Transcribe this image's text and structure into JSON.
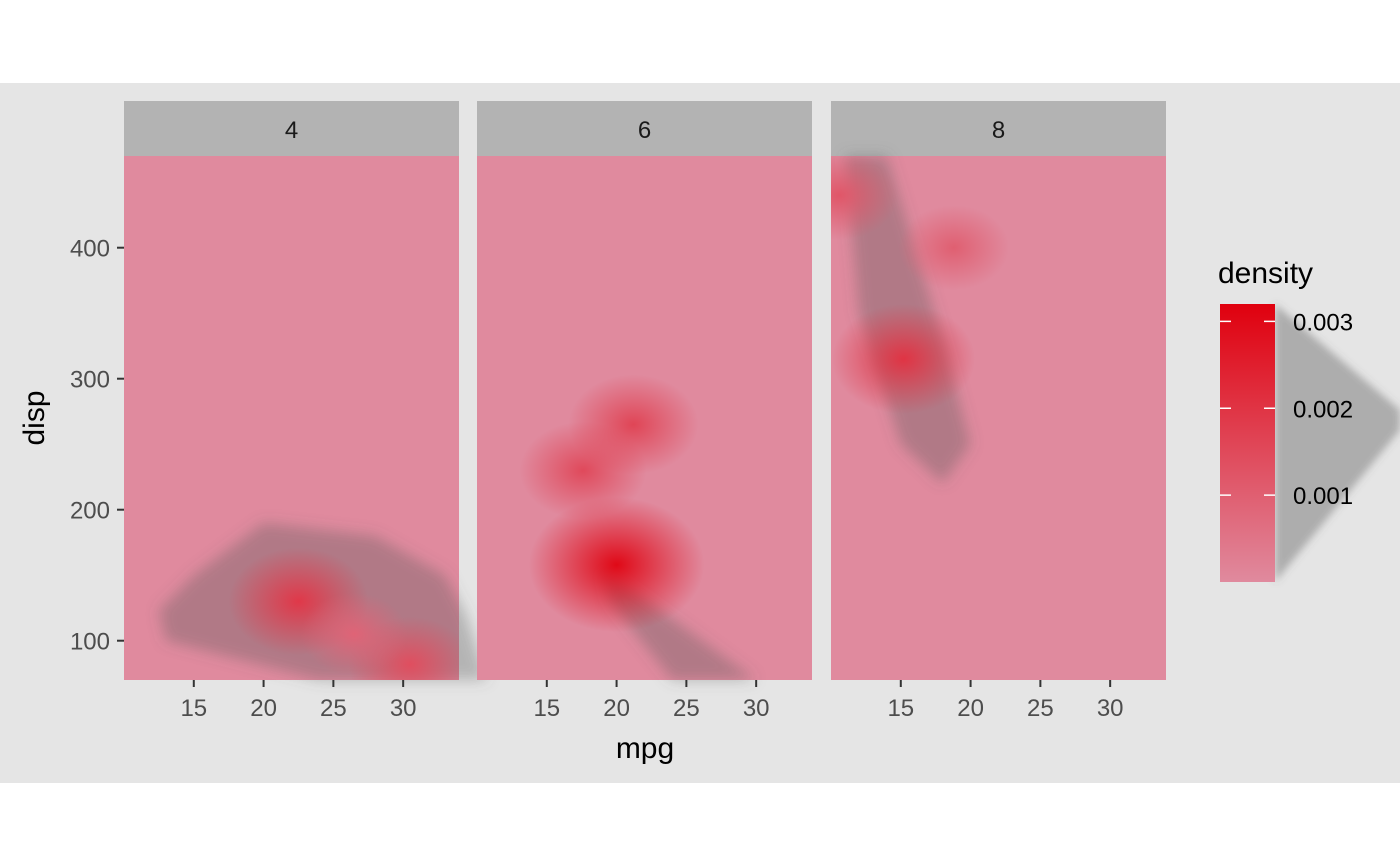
{
  "chart_data": {
    "type": "heatmap",
    "xlabel": "mpg",
    "ylabel": "disp",
    "facet_variable_values": [
      "4",
      "6",
      "8"
    ],
    "xlim": [
      10,
      34
    ],
    "ylim": [
      70,
      470
    ],
    "x_ticks": [
      15,
      20,
      25,
      30
    ],
    "y_ticks": [
      100,
      200,
      300,
      400
    ],
    "legend": {
      "title": "density",
      "position": "right",
      "range": [
        0,
        0.0032
      ],
      "ticks": [
        0.001,
        0.002,
        0.003
      ],
      "tick_labels": [
        "0.001",
        "0.002",
        "0.003"
      ],
      "low_color": "#e08a9e",
      "high_color": "#e0000e"
    },
    "panels": [
      {
        "label": "4",
        "peaks": [
          {
            "x": 22.5,
            "y": 130,
            "density": 0.0019
          },
          {
            "x": 30.5,
            "y": 82,
            "density": 0.0014
          },
          {
            "x": 26.5,
            "y": 105,
            "density": 0.0009
          }
        ],
        "shadow_hull": [
          [
            12.5,
            123
          ],
          [
            15,
            150
          ],
          [
            20,
            190
          ],
          [
            28,
            180
          ],
          [
            33,
            150
          ],
          [
            34.5,
            120
          ],
          [
            36,
            70
          ],
          [
            24,
            70
          ],
          [
            13,
            100
          ]
        ]
      },
      {
        "label": "6",
        "peaks": [
          {
            "x": 20,
            "y": 158,
            "density": 0.003
          },
          {
            "x": 17.6,
            "y": 230,
            "density": 0.0015
          },
          {
            "x": 21.2,
            "y": 265,
            "density": 0.0016
          }
        ],
        "shadow_hull": [
          [
            19,
            155
          ],
          [
            21,
            140
          ],
          [
            30,
            70
          ],
          [
            24,
            70
          ],
          [
            19.5,
            130
          ]
        ]
      },
      {
        "label": "8",
        "peaks": [
          {
            "x": 15.2,
            "y": 315,
            "density": 0.002
          },
          {
            "x": 10.6,
            "y": 440,
            "density": 0.0012
          },
          {
            "x": 18.8,
            "y": 400,
            "density": 0.001
          }
        ],
        "shadow_hull": [
          [
            11,
            470
          ],
          [
            14,
            470
          ],
          [
            18,
            330
          ],
          [
            20,
            250
          ],
          [
            18,
            220
          ],
          [
            15,
            250
          ],
          [
            12,
            350
          ]
        ]
      }
    ]
  }
}
